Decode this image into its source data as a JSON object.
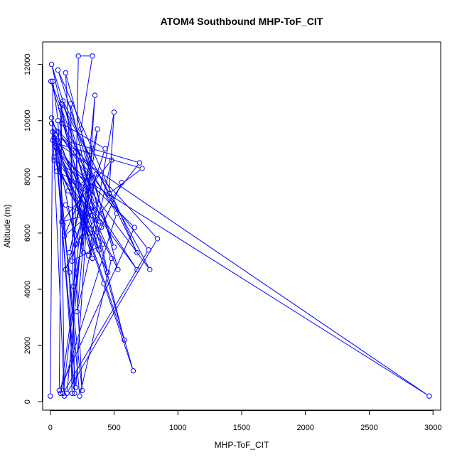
{
  "chart_data": {
    "type": "scatter",
    "title": "ATOM4 Southbound MHP-ToF_CIT",
    "xlabel": "MHP-ToF_CIT",
    "ylabel": "Altitude (m)",
    "xlim": [
      -60,
      3060
    ],
    "ylim": [
      -300,
      12800
    ],
    "xticks": [
      0,
      500,
      1000,
      1500,
      2000,
      2500,
      3000
    ],
    "yticks": [
      0,
      2000,
      4000,
      6000,
      8000,
      10000,
      12000
    ],
    "series_color": "#0000ff",
    "markers": "open-circle",
    "connected": true,
    "grid": false,
    "series": [
      {
        "values": [
          {
            "x": 0,
            "y": 200
          },
          {
            "x": 20,
            "y": 11400
          },
          {
            "x": 60,
            "y": 10000
          },
          {
            "x": 100,
            "y": 6300
          },
          {
            "x": 150,
            "y": 4600
          },
          {
            "x": 170,
            "y": 300
          },
          {
            "x": 220,
            "y": 12300
          },
          {
            "x": 330,
            "y": 12300
          },
          {
            "x": 240,
            "y": 9700
          },
          {
            "x": 400,
            "y": 6200
          },
          {
            "x": 560,
            "y": 7800
          },
          {
            "x": 300,
            "y": 5200
          },
          {
            "x": 500,
            "y": 10300
          },
          {
            "x": 460,
            "y": 7400
          },
          {
            "x": 720,
            "y": 8300
          },
          {
            "x": 40,
            "y": 9200
          },
          {
            "x": 420,
            "y": 4200
          },
          {
            "x": 650,
            "y": 1100
          },
          {
            "x": 5,
            "y": 11400
          },
          {
            "x": 500,
            "y": 5500
          },
          {
            "x": 60,
            "y": 11800
          },
          {
            "x": 680,
            "y": 5300
          },
          {
            "x": 100,
            "y": 10700
          },
          {
            "x": 580,
            "y": 2200
          },
          {
            "x": 20,
            "y": 9600
          },
          {
            "x": 110,
            "y": 200
          },
          {
            "x": 80,
            "y": 10500
          },
          {
            "x": 330,
            "y": 5100
          },
          {
            "x": 10,
            "y": 9900
          },
          {
            "x": 840,
            "y": 5800
          },
          {
            "x": 130,
            "y": 300
          },
          {
            "x": 350,
            "y": 10900
          },
          {
            "x": 200,
            "y": 500
          },
          {
            "x": 40,
            "y": 9100
          },
          {
            "x": 480,
            "y": 5100
          },
          {
            "x": 230,
            "y": 200
          },
          {
            "x": 60,
            "y": 8900
          },
          {
            "x": 660,
            "y": 6200
          },
          {
            "x": 70,
            "y": 400
          },
          {
            "x": 90,
            "y": 10600
          },
          {
            "x": 780,
            "y": 4700
          },
          {
            "x": 20,
            "y": 9300
          },
          {
            "x": 2970,
            "y": 200
          },
          {
            "x": 30,
            "y": 8600
          },
          {
            "x": 380,
            "y": 5400
          },
          {
            "x": 10,
            "y": 10100
          },
          {
            "x": 250,
            "y": 400
          },
          {
            "x": 120,
            "y": 11700
          },
          {
            "x": 530,
            "y": 4700
          },
          {
            "x": 40,
            "y": 9500
          },
          {
            "x": 190,
            "y": 300
          },
          {
            "x": 160,
            "y": 10600
          },
          {
            "x": 450,
            "y": 4600
          },
          {
            "x": 30,
            "y": 8700
          },
          {
            "x": 680,
            "y": 4700
          },
          {
            "x": 50,
            "y": 9000
          },
          {
            "x": 200,
            "y": 5600
          },
          {
            "x": 700,
            "y": 8500
          },
          {
            "x": 30,
            "y": 9400
          },
          {
            "x": 310,
            "y": 6000
          },
          {
            "x": 10,
            "y": 12000
          },
          {
            "x": 350,
            "y": 7000
          },
          {
            "x": 120,
            "y": 4700
          },
          {
            "x": 430,
            "y": 9000
          },
          {
            "x": 90,
            "y": 9900
          },
          {
            "x": 520,
            "y": 6700
          },
          {
            "x": 80,
            "y": 300
          },
          {
            "x": 370,
            "y": 9700
          },
          {
            "x": 150,
            "y": 5300
          },
          {
            "x": 280,
            "y": 8100
          },
          {
            "x": 60,
            "y": 9600
          },
          {
            "x": 770,
            "y": 5400
          },
          {
            "x": 100,
            "y": 300
          },
          {
            "x": 330,
            "y": 9000
          },
          {
            "x": 210,
            "y": 3200
          },
          {
            "x": 480,
            "y": 8600
          },
          {
            "x": 90,
            "y": 6400
          },
          {
            "x": 250,
            "y": 6600
          },
          {
            "x": 180,
            "y": 4100
          },
          {
            "x": 360,
            "y": 8100
          },
          {
            "x": 140,
            "y": 7500
          },
          {
            "x": 410,
            "y": 5600
          },
          {
            "x": 170,
            "y": 5000
          },
          {
            "x": 300,
            "y": 7600
          },
          {
            "x": 50,
            "y": 8200
          },
          {
            "x": 390,
            "y": 6400
          },
          {
            "x": 120,
            "y": 7000
          },
          {
            "x": 260,
            "y": 5300
          },
          {
            "x": 200,
            "y": 8900
          },
          {
            "x": 340,
            "y": 6800
          },
          {
            "x": 110,
            "y": 5900
          },
          {
            "x": 230,
            "y": 7200
          }
        ]
      }
    ]
  }
}
